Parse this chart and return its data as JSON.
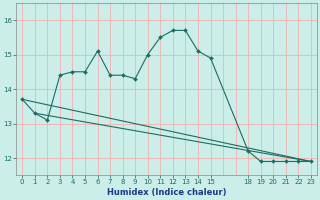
{
  "xlabel": "Humidex (Indice chaleur)",
  "bg_color": "#cceee8",
  "grid_color": "#f0b8b8",
  "line_color": "#1a6e60",
  "ylim": [
    11.5,
    16.5
  ],
  "xlim": [
    -0.5,
    23.5
  ],
  "yticks": [
    12,
    13,
    14,
    15,
    16
  ],
  "xtick_positions": [
    0,
    1,
    2,
    3,
    4,
    5,
    6,
    7,
    8,
    9,
    10,
    11,
    12,
    13,
    14,
    15,
    18,
    19,
    20,
    21,
    22,
    23
  ],
  "xtick_labels": [
    "0",
    "1",
    "2",
    "3",
    "4",
    "5",
    "6",
    "7",
    "8",
    "9",
    "10",
    "11",
    "12",
    "13",
    "14",
    "15",
    "18",
    "19",
    "20",
    "21",
    "22",
    "23"
  ],
  "curve_x": [
    0,
    1,
    2,
    3,
    4,
    5,
    6,
    7,
    8,
    9,
    10,
    11,
    12,
    13,
    14,
    15,
    18,
    19,
    20,
    21,
    22,
    23
  ],
  "curve_y": [
    13.7,
    13.3,
    13.1,
    14.4,
    14.5,
    14.5,
    15.1,
    14.4,
    14.4,
    14.3,
    15.0,
    15.5,
    15.7,
    15.7,
    15.1,
    14.9,
    12.2,
    11.9,
    11.9,
    11.9,
    11.9,
    11.9
  ],
  "trend1_x": [
    0,
    23
  ],
  "trend1_y": [
    13.7,
    11.9
  ],
  "trend2_x": [
    1,
    23
  ],
  "trend2_y": [
    13.3,
    11.9
  ],
  "ylabel_fontsize": 5.5,
  "xlabel_fontsize": 6.0,
  "tick_fontsize": 5.0,
  "line_width": 0.8,
  "marker_size": 2.0
}
